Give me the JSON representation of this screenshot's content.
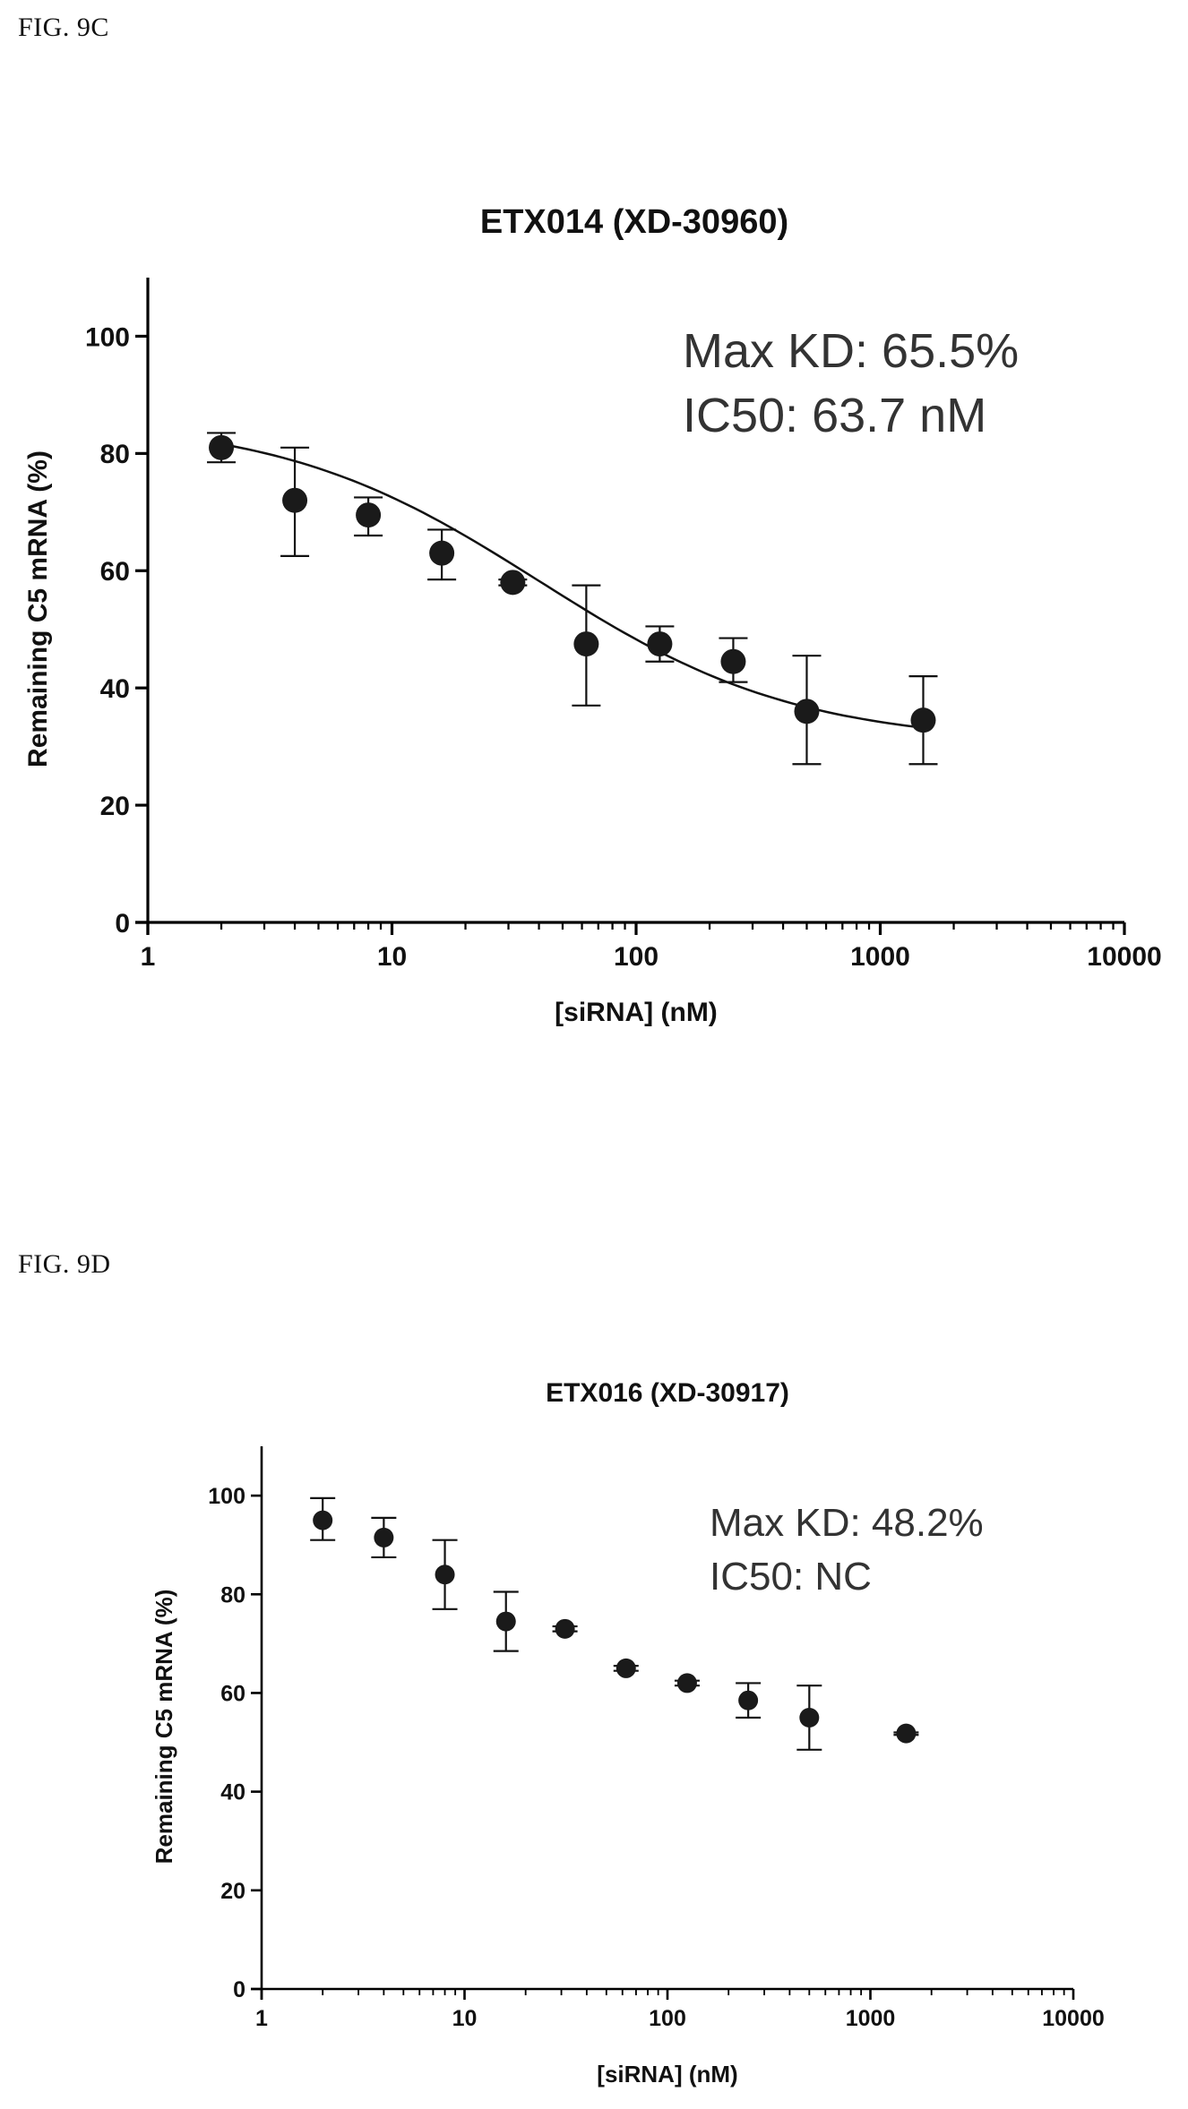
{
  "figures": [
    {
      "label": "FIG. 9C"
    },
    {
      "label": "FIG. 9D"
    }
  ],
  "chart_data": [
    {
      "type": "scatter",
      "title": "ETX014 (XD-30960)",
      "xlabel": "[siRNA] (nM)",
      "ylabel": "Remaining C5 mRNA (%)",
      "xscale": "log",
      "xlim": [
        1,
        10000
      ],
      "ylim": [
        0,
        110
      ],
      "xticks": [
        "1",
        "10",
        "100",
        "1000",
        "10000"
      ],
      "yticks": [
        "0",
        "20",
        "40",
        "60",
        "80",
        "100"
      ],
      "annotations": [
        "Max KD: 65.5%",
        "IC50: 63.7 nM"
      ],
      "fit_curve": true,
      "x": [
        2,
        4,
        8,
        16,
        31.25,
        62.5,
        125,
        250,
        500,
        1500
      ],
      "y": [
        81,
        72,
        69.5,
        63,
        58,
        47.5,
        47.5,
        44.5,
        36,
        34.5
      ],
      "err_upper": [
        83.5,
        81,
        72.5,
        67,
        58.5,
        57.5,
        50.5,
        48.5,
        45.5,
        42
      ],
      "err_lower": [
        78.5,
        62.5,
        66,
        58.5,
        57.5,
        37,
        44.5,
        41,
        27,
        27
      ]
    },
    {
      "type": "scatter",
      "title": "ETX016 (XD-30917)",
      "xlabel": "[siRNA] (nM)",
      "ylabel": "Remaining C5 mRNA (%)",
      "xscale": "log",
      "xlim": [
        1,
        10000
      ],
      "ylim": [
        0,
        110
      ],
      "xticks": [
        "1",
        "10",
        "100",
        "1000",
        "10000"
      ],
      "yticks": [
        "0",
        "20",
        "40",
        "60",
        "80",
        "100"
      ],
      "annotations": [
        "Max KD: 48.2%",
        "IC50: NC"
      ],
      "fit_curve": false,
      "x": [
        2,
        4,
        8,
        16,
        31.25,
        62.5,
        125,
        250,
        500,
        1500
      ],
      "y": [
        95,
        91.5,
        84,
        74.5,
        73,
        65,
        62,
        58.5,
        55,
        51.8
      ],
      "err_upper": [
        99.5,
        95.5,
        91,
        80.5,
        73.5,
        65.5,
        62.5,
        62,
        61.5,
        52
      ],
      "err_lower": [
        91,
        87.5,
        77,
        68.5,
        72.5,
        64.5,
        61.5,
        55,
        48.5,
        51.5
      ]
    }
  ]
}
